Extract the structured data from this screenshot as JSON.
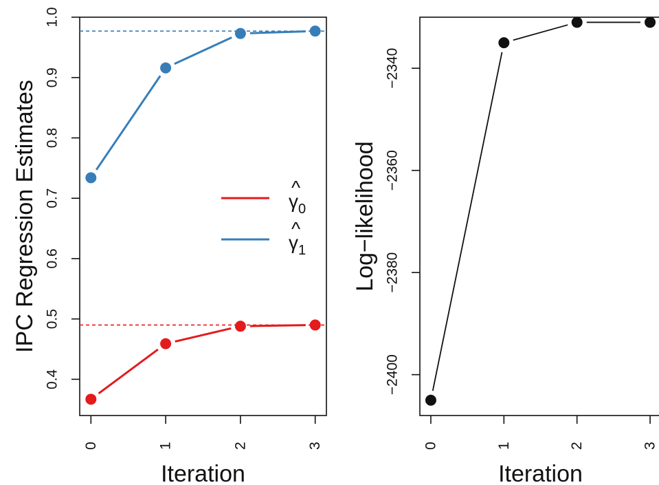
{
  "chart_data": [
    {
      "type": "line",
      "title": "",
      "xlabel": "Iteration",
      "ylabel": "IPC Regression Estimates",
      "x": [
        0,
        1,
        2,
        3
      ],
      "x_tick_labels": [
        "0",
        "1",
        "2",
        "3"
      ],
      "xlim": [
        -0.15,
        3.15
      ],
      "ylim": [
        0.34,
        1.0
      ],
      "y_tick_labels": [
        "0.4",
        "0.5",
        "0.6",
        "0.7",
        "0.8",
        "0.9",
        "1.0"
      ],
      "y_ticks": [
        0.4,
        0.5,
        0.6,
        0.7,
        0.8,
        0.9,
        1.0
      ],
      "grid": false,
      "legend_position": "right",
      "series": [
        {
          "name": "γ̂0",
          "name_base": "γ",
          "name_subscript": "0",
          "color": "#e41a1c",
          "values": [
            0.367,
            0.459,
            0.488,
            0.49
          ],
          "reference_line": 0.49
        },
        {
          "name": "γ̂1",
          "name_base": "γ",
          "name_subscript": "1",
          "color": "#377eb8",
          "values": [
            0.734,
            0.916,
            0.973,
            0.977
          ],
          "reference_line": 0.977
        }
      ]
    },
    {
      "type": "line",
      "title": "",
      "xlabel": "Iteration",
      "ylabel": "Log−likelihood",
      "x": [
        0,
        1,
        2,
        3
      ],
      "x_tick_labels": [
        "0",
        "1",
        "2",
        "3"
      ],
      "xlim": [
        -0.15,
        3.15
      ],
      "ylim": [
        -2408,
        -2330
      ],
      "y_tick_labels": [
        "−2400",
        "−2380",
        "−2360",
        "−2340"
      ],
      "y_ticks": [
        -2400,
        -2380,
        -2360,
        -2340
      ],
      "grid": false,
      "series": [
        {
          "color": "#111111",
          "values": [
            -2405,
            -2335,
            -2331,
            -2331
          ]
        }
      ]
    }
  ]
}
